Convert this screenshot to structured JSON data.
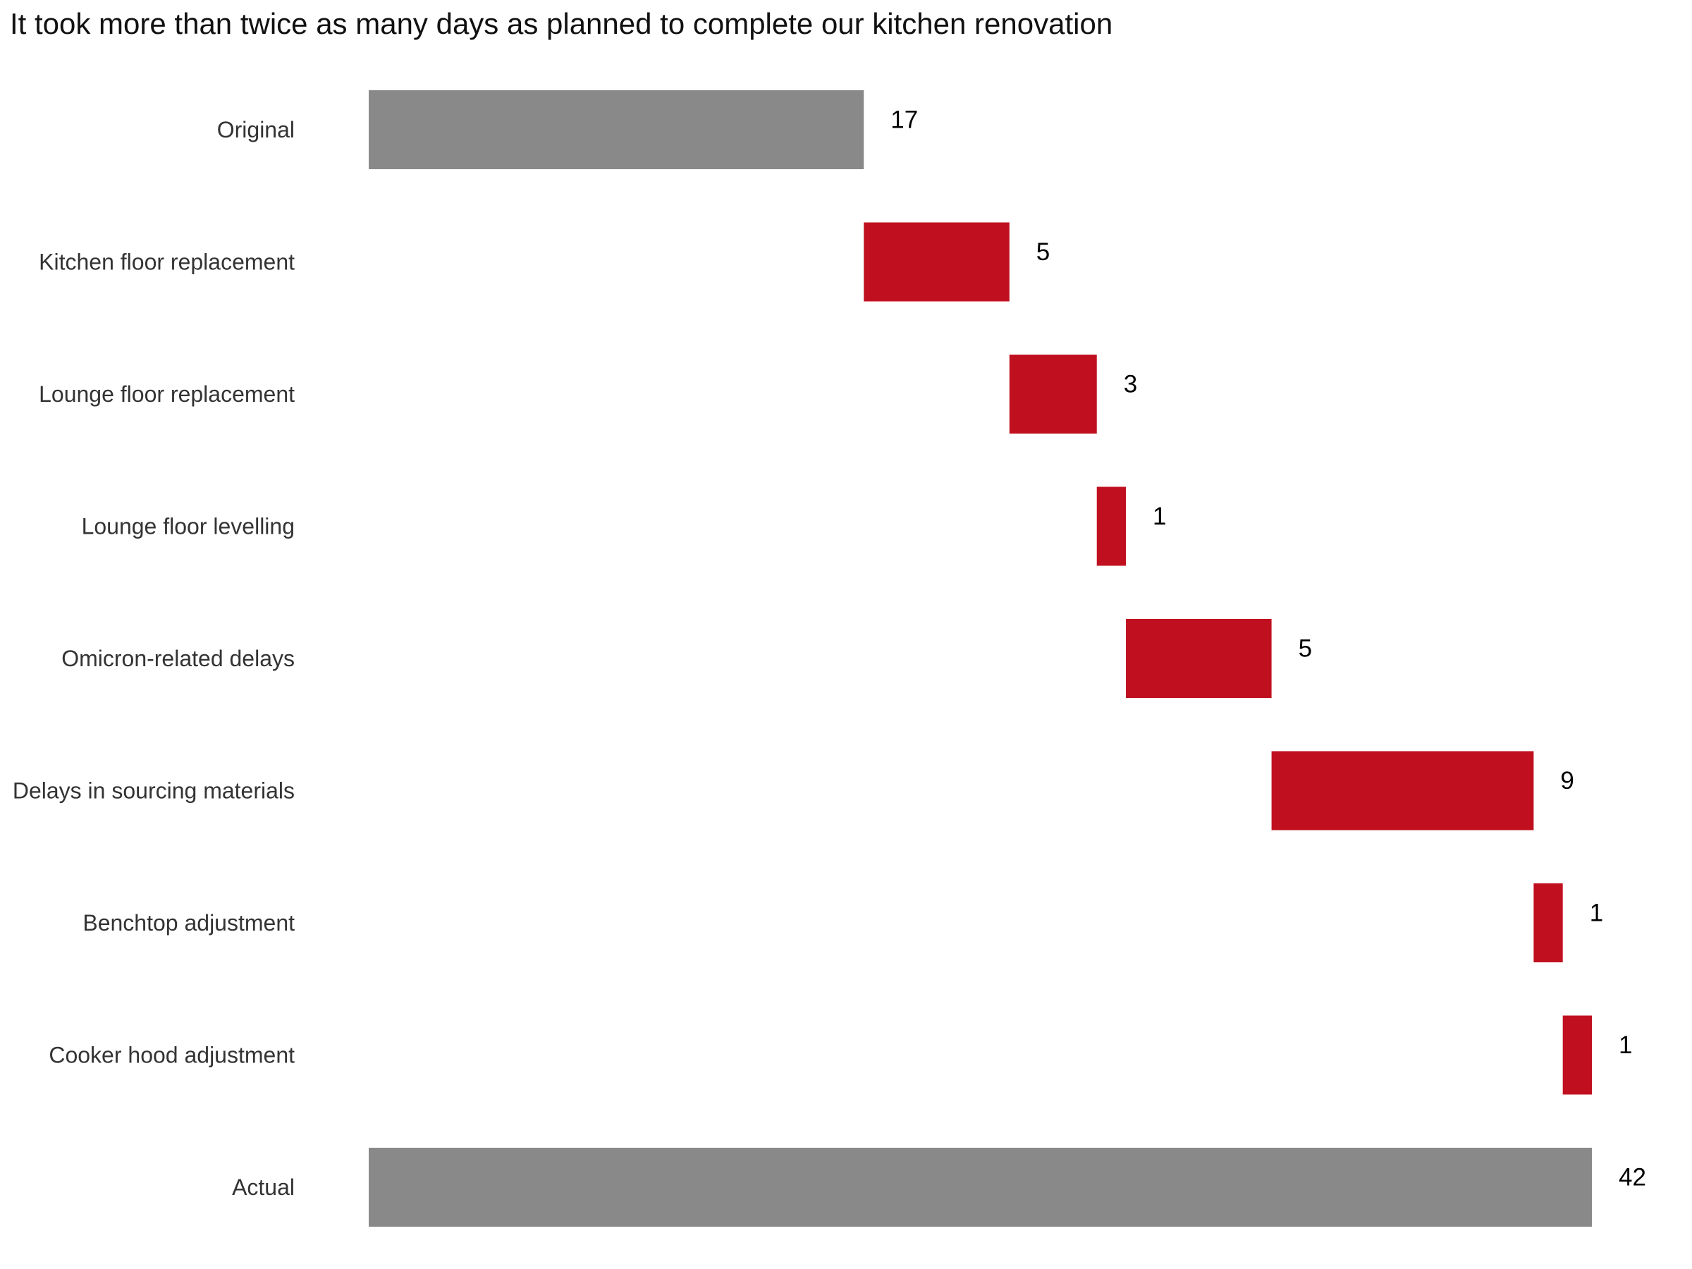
{
  "chart_data": {
    "type": "bar",
    "subtype": "waterfall",
    "orientation": "horizontal",
    "title": "It took more than twice as many days as planned to complete our kitchen renovation",
    "xlabel": "",
    "ylabel": "",
    "xlim": [
      0,
      42
    ],
    "grid": false,
    "legend": "none",
    "colors": {
      "total": "#898989",
      "increase": "#c0101f"
    },
    "categories": [
      "Original",
      "Kitchen floor replacement",
      "Lounge floor replacement",
      "Lounge floor levelling",
      "Omicron-related delays",
      "Delays in sourcing materials",
      "Benchtop adjustment",
      "Cooker hood adjustment",
      "Actual"
    ],
    "values": [
      17,
      5,
      3,
      1,
      5,
      9,
      1,
      1,
      42
    ],
    "kinds": [
      "total",
      "increase",
      "increase",
      "increase",
      "increase",
      "increase",
      "increase",
      "increase",
      "total"
    ],
    "data_labels": [
      "17",
      "5",
      "3",
      "1",
      "5",
      "9",
      "1",
      "1",
      "42"
    ]
  }
}
